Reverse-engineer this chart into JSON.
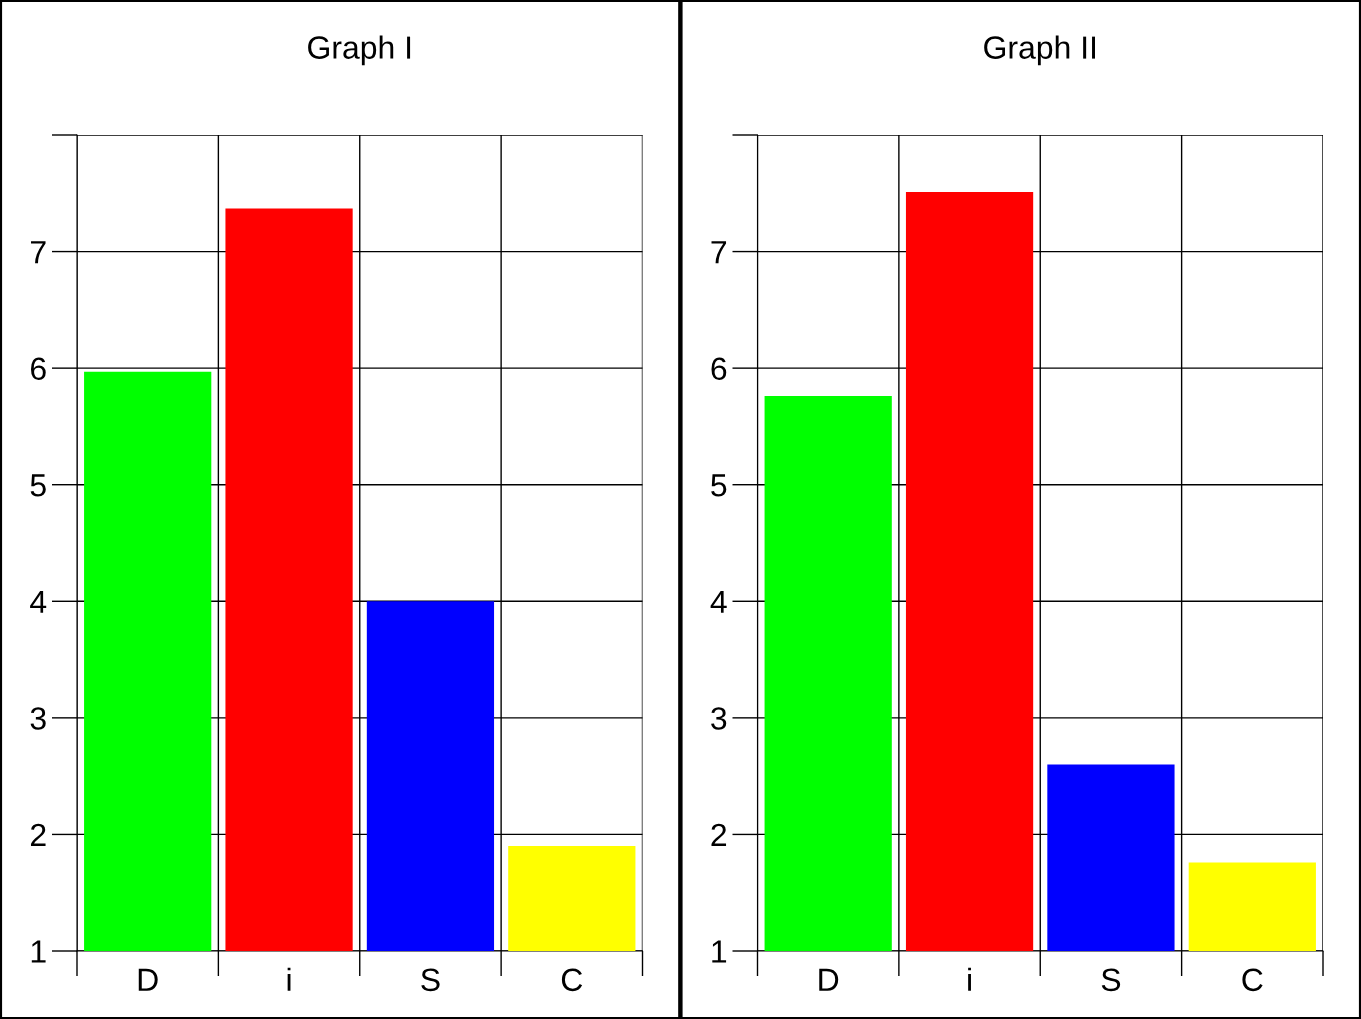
{
  "chart_data": [
    {
      "type": "bar",
      "title": "Graph I",
      "categories": [
        "D",
        "i",
        "S",
        "C"
      ],
      "values": [
        5.97,
        7.37,
        4.0,
        1.9
      ],
      "colors": [
        "#00ff00",
        "#ff0000",
        "#0000ff",
        "#ffff00"
      ],
      "ylim": [
        1,
        8
      ],
      "yticks": [
        1,
        2,
        3,
        4,
        5,
        6,
        7,
        {
          "value": 8,
          "label": null
        }
      ],
      "grid": true
    },
    {
      "type": "bar",
      "title": "Graph II",
      "categories": [
        "D",
        "i",
        "S",
        "C"
      ],
      "values": [
        5.76,
        7.51,
        2.6,
        1.76
      ],
      "colors": [
        "#00ff00",
        "#ff0000",
        "#0000ff",
        "#ffff00"
      ],
      "ylim": [
        1,
        8
      ],
      "yticks": [
        1,
        2,
        3,
        4,
        5,
        6,
        7,
        {
          "value": 8,
          "label": null
        }
      ],
      "grid": true
    }
  ]
}
